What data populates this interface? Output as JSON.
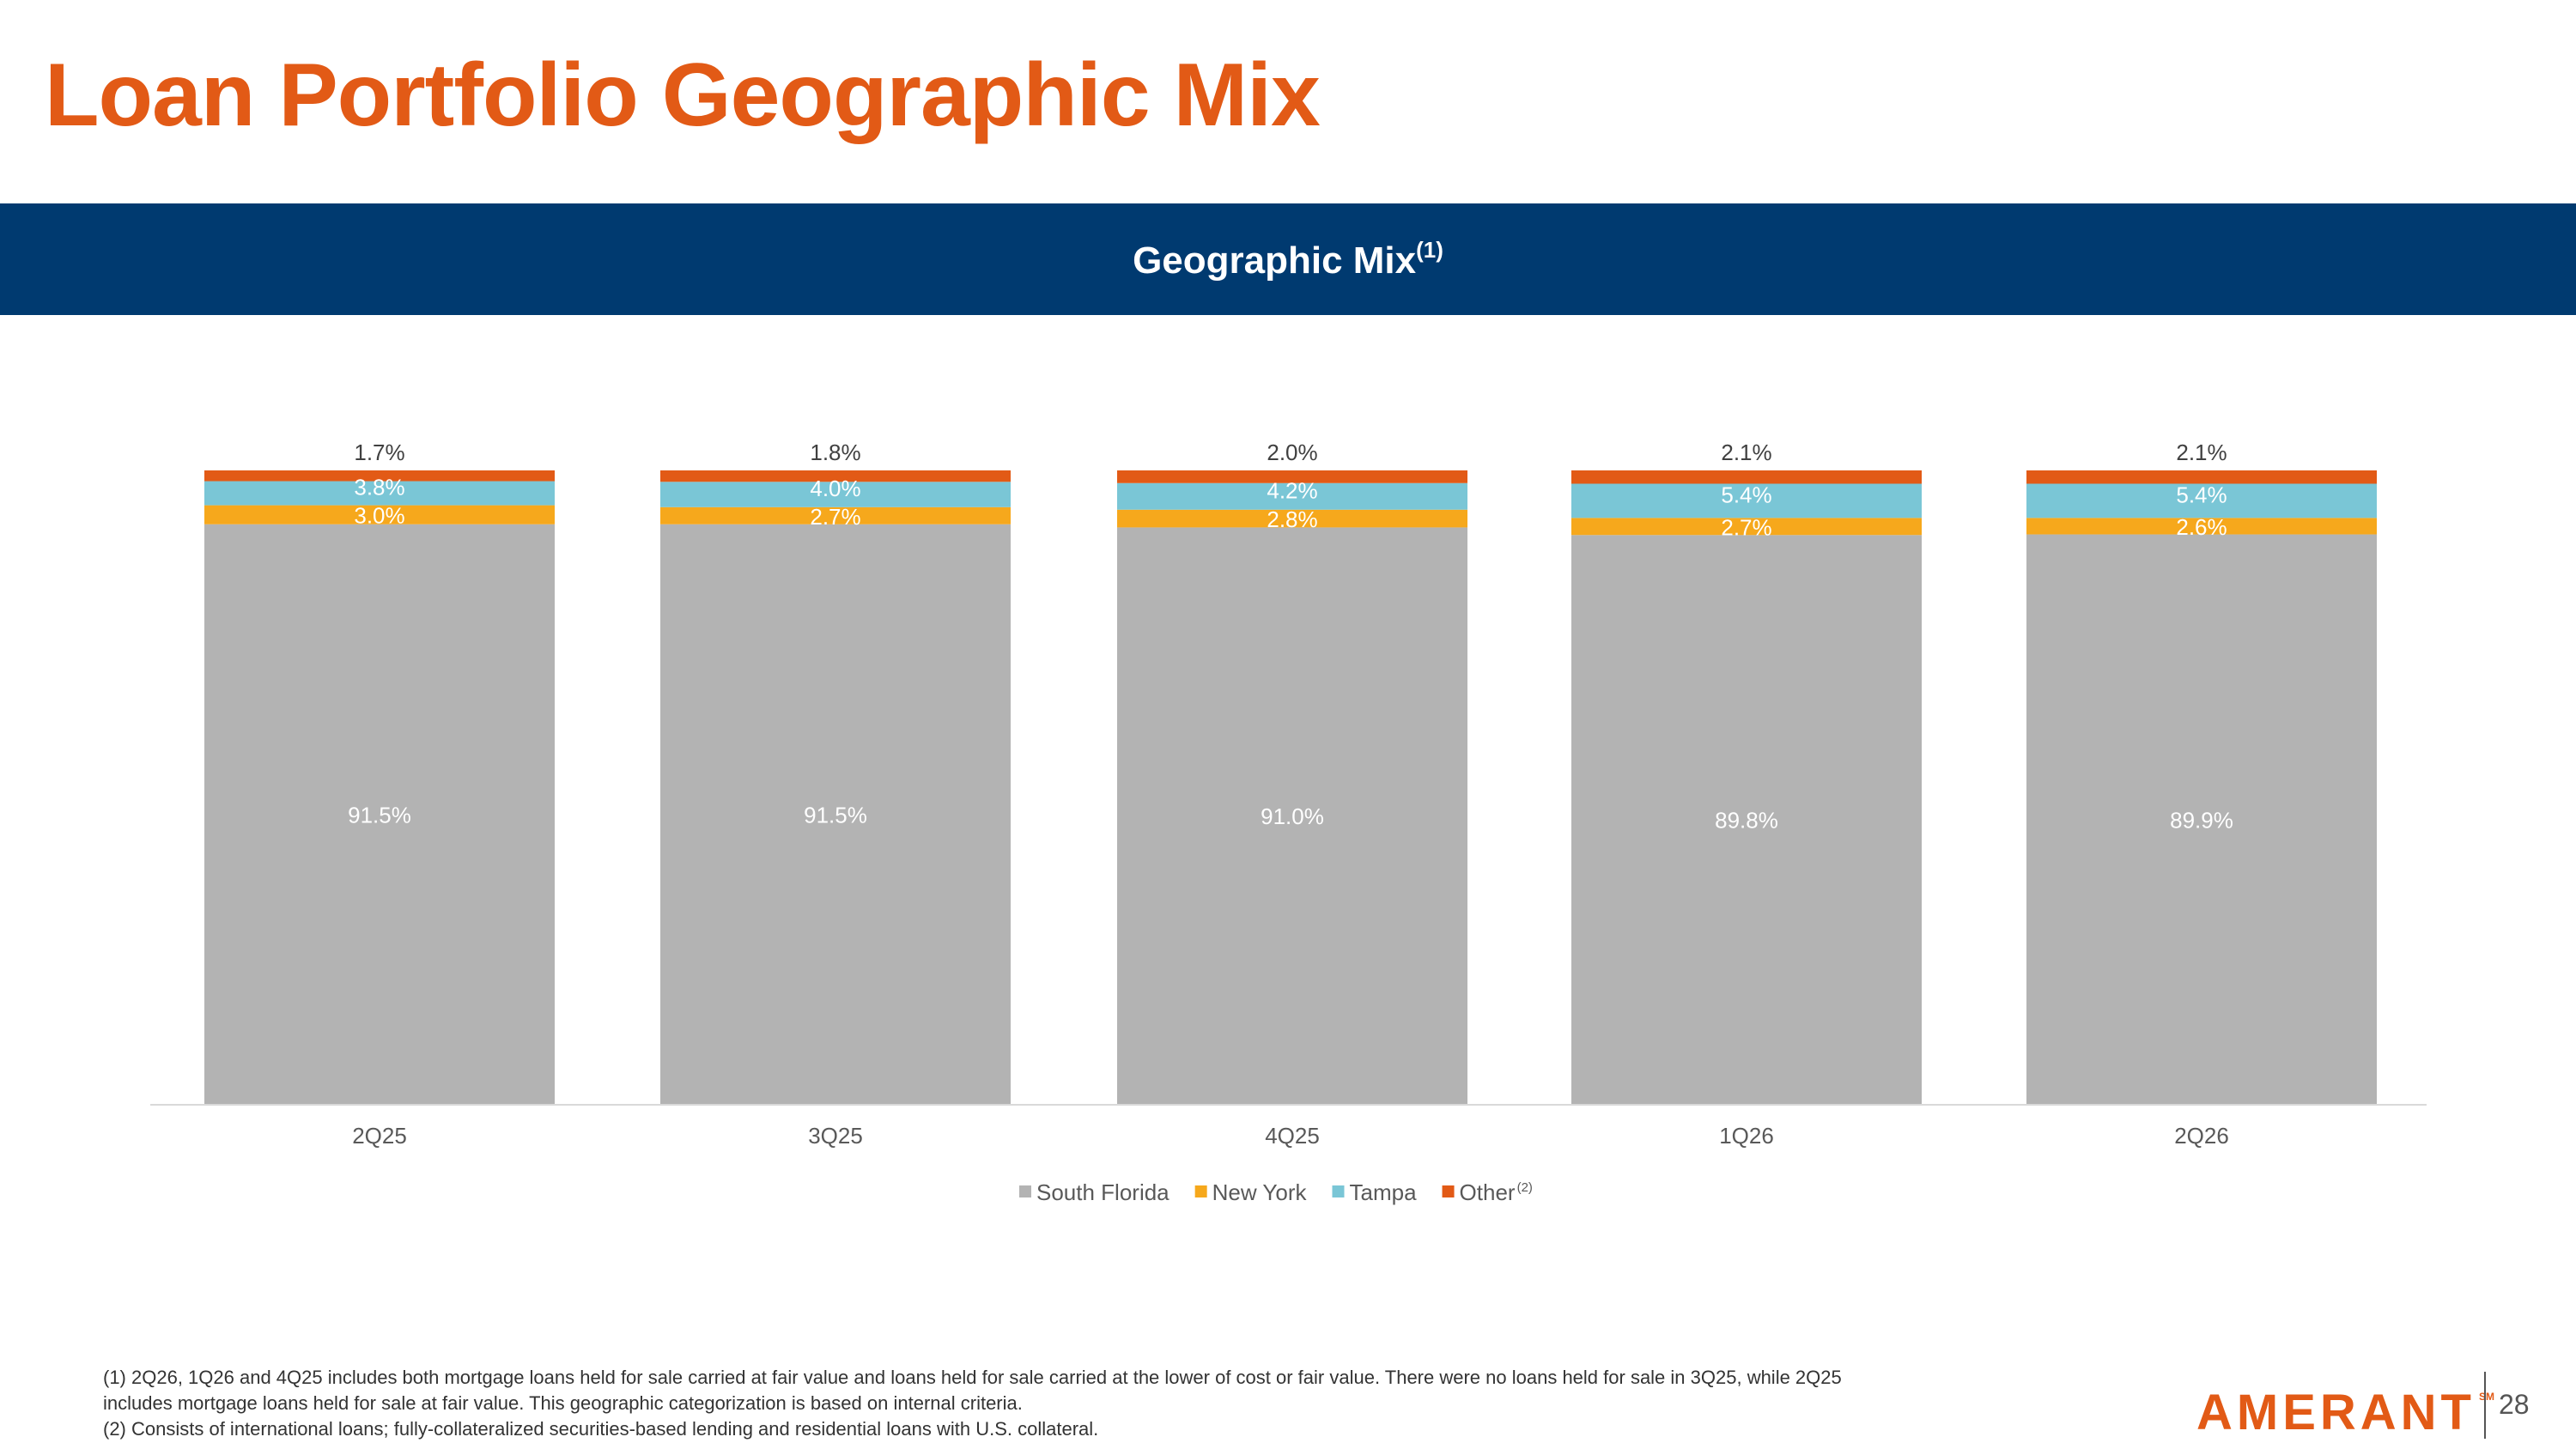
{
  "page": {
    "title": "Loan Portfolio Geographic Mix",
    "banner_title": "Geographic Mix",
    "banner_superscript": "(1)",
    "page_number": "28",
    "logo_text": "AMERANT",
    "logo_mark": "SM",
    "footnotes": [
      "(1) 2Q26, 1Q26 and 4Q25 includes both mortgage loans held for sale carried at fair value and loans held for sale carried at the lower of cost or fair value. There were no loans held for sale in 3Q25, while 2Q25",
      "includes mortgage loans held for sale at fair value. This geographic categorization is based on internal criteria.",
      "(2) Consists of international loans; fully-collateralized securities-based lending and residential loans with U.S. collateral."
    ]
  },
  "colors": {
    "title": "#e25a16",
    "banner": "#003a70",
    "logo": "#e25a16",
    "south_florida": "#b3b3b3",
    "new_york": "#f6a81c",
    "tampa": "#7ac6d6",
    "other": "#e25a16"
  },
  "chart_data": {
    "type": "bar",
    "stacked": true,
    "title": "Geographic Mix(1)",
    "categories": [
      "2Q25",
      "3Q25",
      "4Q25",
      "1Q26",
      "2Q26"
    ],
    "series": [
      {
        "name": "South Florida",
        "values": [
          91.5,
          91.5,
          91.0,
          89.8,
          89.9
        ],
        "labels": [
          "91.5%",
          "91.5%",
          "91.0%",
          "89.8%",
          "89.9%"
        ],
        "color": "#b3b3b3"
      },
      {
        "name": "New York",
        "values": [
          3.0,
          2.7,
          2.8,
          2.7,
          2.6
        ],
        "labels": [
          "3.0%",
          "2.7%",
          "2.8%",
          "2.7%",
          "2.6%"
        ],
        "color": "#f6a81c"
      },
      {
        "name": "Tampa",
        "values": [
          3.8,
          4.0,
          4.2,
          5.4,
          5.4
        ],
        "labels": [
          "3.8%",
          "4.0%",
          "4.2%",
          "5.4%",
          "5.4%"
        ],
        "color": "#7ac6d6"
      },
      {
        "name": "Other",
        "name_superscript": "(2)",
        "values": [
          1.7,
          1.8,
          2.0,
          2.1,
          2.1
        ],
        "labels": [
          "1.7%",
          "1.8%",
          "2.0%",
          "2.1%",
          "2.1%"
        ],
        "color": "#e25a16"
      }
    ],
    "ylim": [
      0,
      100
    ],
    "grid": false,
    "legend_position": "bottom",
    "unit": "%"
  }
}
